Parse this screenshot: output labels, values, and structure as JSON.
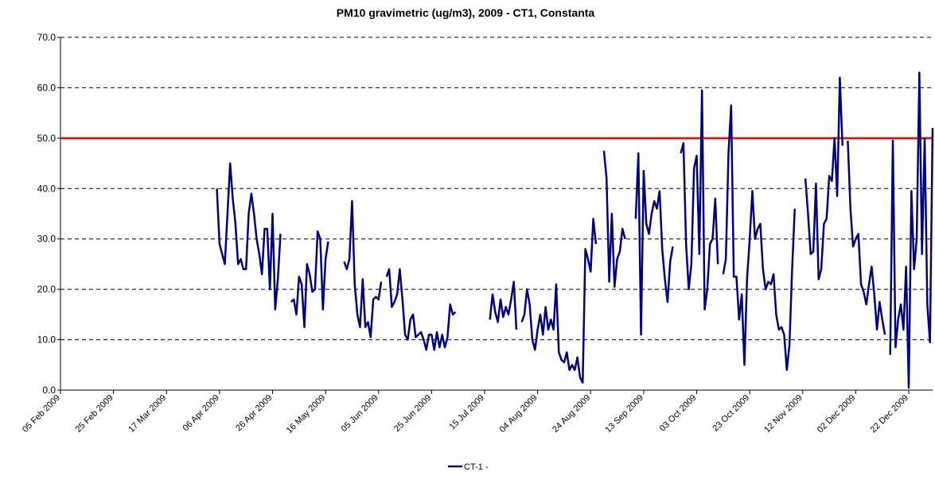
{
  "chart_data": {
    "type": "line",
    "title": "PM10 gravimetric (ug/m3),  2009 - CT1, Constanta",
    "xlim": [
      "2009-02-05",
      "2009-12-31"
    ],
    "xticks": [
      {
        "value": "2009-02-05",
        "label": "05 Feb 2009"
      },
      {
        "value": "2009-02-25",
        "label": "25 Feb 2009"
      },
      {
        "value": "2009-03-17",
        "label": "17 Mar 2009"
      },
      {
        "value": "2009-04-06",
        "label": "06 Apr 2009"
      },
      {
        "value": "2009-04-26",
        "label": "26 Apr 2009"
      },
      {
        "value": "2009-05-16",
        "label": "16 May 2009"
      },
      {
        "value": "2009-06-05",
        "label": "05 Jun 2009"
      },
      {
        "value": "2009-06-25",
        "label": "25 Jun 2009"
      },
      {
        "value": "2009-07-15",
        "label": "15 Jul 2009"
      },
      {
        "value": "2009-08-04",
        "label": "04 Aug 2009"
      },
      {
        "value": "2009-08-24",
        "label": "24 Aug 2009"
      },
      {
        "value": "2009-09-13",
        "label": "13 Sep 2009"
      },
      {
        "value": "2009-10-03",
        "label": "03 Oct 2009"
      },
      {
        "value": "2009-10-23",
        "label": "23 Oct 2009"
      },
      {
        "value": "2009-11-12",
        "label": "12 Nov 2009"
      },
      {
        "value": "2009-12-02",
        "label": "02 Dec 2009"
      },
      {
        "value": "2009-12-22",
        "label": "22 Dec 2009"
      }
    ],
    "ylim": [
      0,
      70
    ],
    "yticks": [
      {
        "value": 0,
        "label": "0.0"
      },
      {
        "value": 10,
        "label": "10.0"
      },
      {
        "value": 20,
        "label": "20.0"
      },
      {
        "value": 30,
        "label": "30.0"
      },
      {
        "value": 40,
        "label": "40.0"
      },
      {
        "value": 50,
        "label": "50.0"
      },
      {
        "value": 60,
        "label": "60.0"
      },
      {
        "value": 70,
        "label": "70.0"
      }
    ],
    "grid": true,
    "reference_line": {
      "value": 50,
      "color": "#ff0000"
    },
    "legend": "bottom",
    "x": [
      "2009-04-05",
      "2009-04-06",
      "2009-04-07",
      "2009-04-08",
      "2009-04-09",
      "2009-04-10",
      "2009-04-11",
      "2009-04-12",
      "2009-04-13",
      "2009-04-14",
      "2009-04-15",
      "2009-04-16",
      "2009-04-17",
      "2009-04-18",
      "2009-04-19",
      "2009-04-20",
      "2009-04-21",
      "2009-04-22",
      "2009-04-23",
      "2009-04-24",
      "2009-04-25",
      "2009-04-26",
      "2009-04-27",
      "2009-04-28",
      "2009-04-29",
      "2009-04-30",
      "2009-05-01",
      "2009-05-02",
      "2009-05-03",
      "2009-05-04",
      "2009-05-05",
      "2009-05-06",
      "2009-05-07",
      "2009-05-08",
      "2009-05-09",
      "2009-05-10",
      "2009-05-11",
      "2009-05-12",
      "2009-05-13",
      "2009-05-14",
      "2009-05-15",
      "2009-05-16",
      "2009-05-17",
      "2009-05-18",
      "2009-05-19",
      "2009-05-20",
      "2009-05-21",
      "2009-05-22",
      "2009-05-23",
      "2009-05-24",
      "2009-05-25",
      "2009-05-26",
      "2009-05-27",
      "2009-05-28",
      "2009-05-29",
      "2009-05-30",
      "2009-05-31",
      "2009-06-01",
      "2009-06-02",
      "2009-06-03",
      "2009-06-04",
      "2009-06-05",
      "2009-06-06",
      "2009-06-07",
      "2009-06-08",
      "2009-06-09",
      "2009-06-10",
      "2009-06-11",
      "2009-06-12",
      "2009-06-13",
      "2009-06-14",
      "2009-06-15",
      "2009-06-16",
      "2009-06-17",
      "2009-06-18",
      "2009-06-19",
      "2009-06-20",
      "2009-06-21",
      "2009-06-22",
      "2009-06-23",
      "2009-06-24",
      "2009-06-25",
      "2009-06-26",
      "2009-06-27",
      "2009-06-28",
      "2009-06-29",
      "2009-06-30",
      "2009-07-01",
      "2009-07-02",
      "2009-07-03",
      "2009-07-04",
      "2009-07-05",
      "2009-07-06",
      "2009-07-07",
      "2009-07-08",
      "2009-07-09",
      "2009-07-10",
      "2009-07-11",
      "2009-07-12",
      "2009-07-13",
      "2009-07-14",
      "2009-07-15",
      "2009-07-16",
      "2009-07-17",
      "2009-07-18",
      "2009-07-19",
      "2009-07-20",
      "2009-07-21",
      "2009-07-22",
      "2009-07-23",
      "2009-07-24",
      "2009-07-25",
      "2009-07-26",
      "2009-07-27",
      "2009-07-28",
      "2009-07-29",
      "2009-07-30",
      "2009-07-31",
      "2009-08-01",
      "2009-08-02",
      "2009-08-03",
      "2009-08-04",
      "2009-08-05",
      "2009-08-06",
      "2009-08-07",
      "2009-08-08",
      "2009-08-09",
      "2009-08-10",
      "2009-08-11",
      "2009-08-12",
      "2009-08-13",
      "2009-08-14",
      "2009-08-15",
      "2009-08-16",
      "2009-08-17",
      "2009-08-18",
      "2009-08-19",
      "2009-08-20",
      "2009-08-21",
      "2009-08-22",
      "2009-08-23",
      "2009-08-24",
      "2009-08-25",
      "2009-08-26",
      "2009-08-27",
      "2009-08-28",
      "2009-08-29",
      "2009-08-30",
      "2009-08-31",
      "2009-09-01",
      "2009-09-02",
      "2009-09-03",
      "2009-09-04",
      "2009-09-05",
      "2009-09-06",
      "2009-09-07",
      "2009-09-08",
      "2009-09-09",
      "2009-09-10",
      "2009-09-11",
      "2009-09-12",
      "2009-09-13",
      "2009-09-14",
      "2009-09-15",
      "2009-09-16",
      "2009-09-17",
      "2009-09-18",
      "2009-09-19",
      "2009-09-20",
      "2009-09-21",
      "2009-09-22",
      "2009-09-23",
      "2009-09-24",
      "2009-09-25",
      "2009-09-26",
      "2009-09-27",
      "2009-09-28",
      "2009-09-29",
      "2009-09-30",
      "2009-10-01",
      "2009-10-02",
      "2009-10-03",
      "2009-10-04",
      "2009-10-05",
      "2009-10-06",
      "2009-10-07",
      "2009-10-08",
      "2009-10-09",
      "2009-10-10",
      "2009-10-11",
      "2009-10-12",
      "2009-10-13",
      "2009-10-14",
      "2009-10-15",
      "2009-10-16",
      "2009-10-17",
      "2009-10-18",
      "2009-10-19",
      "2009-10-20",
      "2009-10-21",
      "2009-10-22",
      "2009-10-23",
      "2009-10-24",
      "2009-10-25",
      "2009-10-26",
      "2009-10-27",
      "2009-10-28",
      "2009-10-29",
      "2009-10-30",
      "2009-10-31",
      "2009-11-01",
      "2009-11-02",
      "2009-11-03",
      "2009-11-04",
      "2009-11-05",
      "2009-11-06",
      "2009-11-07",
      "2009-11-08",
      "2009-11-09",
      "2009-11-10",
      "2009-11-11",
      "2009-11-12",
      "2009-11-13",
      "2009-11-14",
      "2009-11-15",
      "2009-11-16",
      "2009-11-17",
      "2009-11-18",
      "2009-11-19",
      "2009-11-20",
      "2009-11-21",
      "2009-11-22",
      "2009-11-23",
      "2009-11-24",
      "2009-11-25",
      "2009-11-26",
      "2009-11-27",
      "2009-11-28",
      "2009-11-29",
      "2009-11-30",
      "2009-12-01",
      "2009-12-02",
      "2009-12-03",
      "2009-12-04",
      "2009-12-05",
      "2009-12-06",
      "2009-12-07",
      "2009-12-08",
      "2009-12-09",
      "2009-12-10",
      "2009-12-11",
      "2009-12-12",
      "2009-12-13",
      "2009-12-14",
      "2009-12-15",
      "2009-12-16",
      "2009-12-17",
      "2009-12-18",
      "2009-12-19",
      "2009-12-20",
      "2009-12-21",
      "2009-12-22",
      "2009-12-23",
      "2009-12-24",
      "2009-12-25",
      "2009-12-26",
      "2009-12-27",
      "2009-12-28",
      "2009-12-29",
      "2009-12-30",
      "2009-12-31"
    ],
    "series": [
      {
        "name": "CT-1 -",
        "color": "#000080",
        "values": [
          40,
          29,
          27,
          25,
          35,
          45,
          38,
          33,
          25,
          26,
          24,
          24,
          35,
          39,
          35,
          30,
          27,
          23,
          32,
          32,
          20,
          35,
          16,
          22,
          31,
          null,
          null,
          null,
          17.5,
          18,
          15,
          22.5,
          21,
          12.5,
          25,
          23,
          19.5,
          20,
          31.5,
          30,
          16,
          26,
          29.5,
          null,
          null,
          null,
          null,
          null,
          25.5,
          24,
          26,
          37.5,
          21,
          15,
          12.5,
          22,
          12.5,
          13.5,
          10.5,
          18,
          18.5,
          18,
          21.5,
          null,
          22.5,
          24,
          16.5,
          17.5,
          19,
          24,
          18,
          11,
          10,
          14,
          15,
          10.5,
          11,
          11.5,
          10,
          8,
          11,
          11,
          8,
          11.5,
          8.5,
          11,
          8.5,
          10.5,
          17,
          15,
          15.5,
          null,
          null,
          null,
          null,
          null,
          null,
          null,
          null,
          null,
          null,
          null,
          null,
          14,
          19,
          15.5,
          13.5,
          18,
          14.5,
          16.5,
          15,
          18,
          21.5,
          12,
          null,
          13.5,
          15,
          20,
          17,
          10,
          8,
          12,
          15,
          11,
          16.5,
          12,
          14,
          12,
          21,
          7.5,
          6,
          5.5,
          7.5,
          4,
          5,
          4,
          6.5,
          2.5,
          1.5,
          28,
          26,
          23.5,
          34,
          29,
          null,
          null,
          47.5,
          42,
          21.5,
          35,
          20.5,
          26,
          27.5,
          32,
          30,
          null,
          null,
          null,
          34,
          47,
          11,
          43.5,
          33,
          31,
          35,
          37.5,
          36,
          39.5,
          28,
          22,
          17.5,
          25.5,
          28.5,
          null,
          null,
          47,
          49,
          29,
          20,
          25,
          44,
          46.5,
          27,
          59.5,
          16,
          20,
          29,
          30,
          38,
          25,
          null,
          23,
          26,
          47,
          56.5,
          22.5,
          22.5,
          14,
          19,
          5,
          22,
          30,
          39.5,
          30,
          32,
          33,
          24,
          20,
          21.5,
          21,
          23,
          15,
          12,
          12.5,
          11,
          4,
          9,
          24,
          36,
          null,
          null,
          null,
          42,
          35,
          27,
          27.5,
          41,
          22,
          24,
          33,
          34,
          42.5,
          41.5,
          50,
          38.5,
          62,
          48.5,
          null,
          49.5,
          36,
          28.5,
          30,
          31,
          21,
          19.5,
          17,
          21,
          24.5,
          19,
          12,
          17.5,
          14,
          11,
          null,
          7,
          49.5,
          8.5,
          14,
          17,
          12,
          24.5,
          0.5,
          39.5,
          24,
          30,
          63,
          27,
          50,
          17,
          9.5,
          52
        ]
      }
    ]
  }
}
